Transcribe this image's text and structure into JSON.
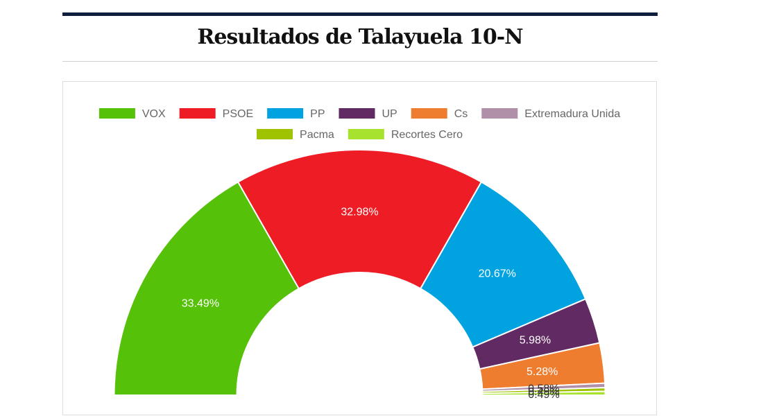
{
  "header": {
    "title": "Resultados de Talayuela 10-N"
  },
  "chart_data": {
    "type": "pie",
    "variant": "half-doughnut",
    "title": "Resultados de Talayuela 10-N",
    "legend_position": "top",
    "series": [
      {
        "name": "VOX",
        "value": 33.49,
        "label": "33.49%",
        "color": "#55c108"
      },
      {
        "name": "PSOE",
        "value": 32.98,
        "label": "32.98%",
        "color": "#ee1c25"
      },
      {
        "name": "PP",
        "value": 20.67,
        "label": "20.67%",
        "color": "#00a3e0"
      },
      {
        "name": "UP",
        "value": 5.98,
        "label": "5.98%",
        "color": "#622a62"
      },
      {
        "name": "Cs",
        "value": 5.28,
        "label": "5.28%",
        "color": "#ef7d30"
      },
      {
        "name": "Extremadura Unida",
        "value": 0.58,
        "label": "0.58%",
        "color": "#b08fa8"
      },
      {
        "name": "Pacma",
        "value": 0.49,
        "label": "0.49%",
        "color": "#9fc300"
      },
      {
        "name": "Recortes Cero",
        "value": 0.49,
        "label": "0.49%",
        "color": "#a6e22e"
      }
    ]
  }
}
